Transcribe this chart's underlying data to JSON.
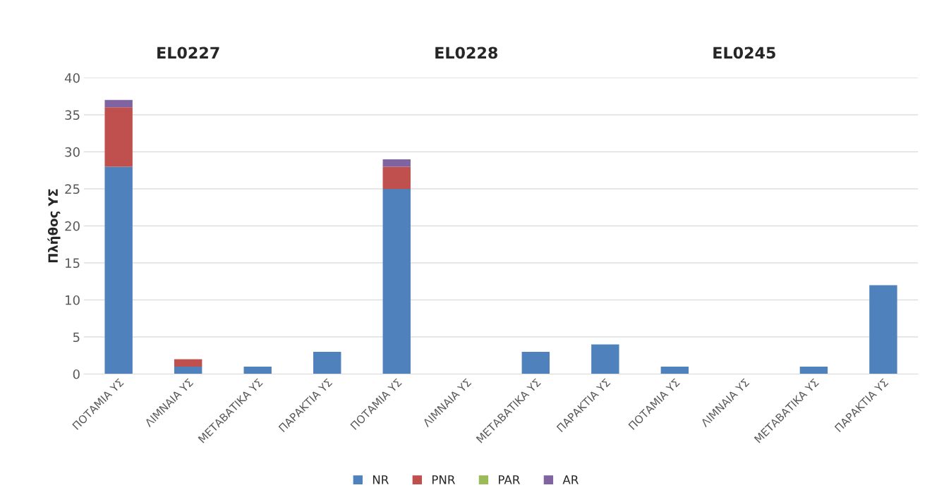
{
  "chart_data": {
    "type": "bar",
    "ylabel": "Πλήθος ΥΣ",
    "stacked": true,
    "categories": [
      "ΠΟΤΑΜΙΑ ΥΣ",
      "ΛΙΜΝΑΙΑ ΥΣ",
      "ΜΕΤΑΒΑΤΙΚΑ ΥΣ",
      "ΠΑΡΑΚΤΙΑ ΥΣ",
      "ΠΟΤΑΜΙΑ ΥΣ",
      "ΛΙΜΝΑΙΑ ΥΣ",
      "ΜΕΤΑΒΑΤΙΚΑ ΥΣ",
      "ΠΑΡΑΚΤΙΑ ΥΣ",
      "ΠΟΤΑΜΙΑ ΥΣ",
      "ΛΙΜΝΑΙΑ ΥΣ",
      "ΜΕΤΑΒΑΤΙΚΑ ΥΣ",
      "ΠΑΡΑΚΤΙΑ ΥΣ"
    ],
    "series": [
      {
        "name": "NR",
        "color": "#4f81bd",
        "values": [
          28,
          1,
          1,
          3,
          25,
          0,
          3,
          4,
          1,
          0,
          1,
          12
        ]
      },
      {
        "name": "PNR",
        "color": "#c0504d",
        "values": [
          8,
          1,
          0,
          0,
          3,
          0,
          0,
          0,
          0,
          0,
          0,
          0
        ]
      },
      {
        "name": "PAR",
        "color": "#9bbb59",
        "values": [
          0,
          0,
          0,
          0,
          0,
          0,
          0,
          0,
          0,
          0,
          0,
          0
        ]
      },
      {
        "name": "AR",
        "color": "#8064a2",
        "values": [
          1,
          0,
          0,
          0,
          1,
          0,
          0,
          0,
          0,
          0,
          0,
          0
        ]
      }
    ],
    "annotations": [
      "EL0227",
      "EL0228",
      "EL0245"
    ],
    "ylim": [
      0,
      40
    ],
    "yticks": [
      0,
      5,
      10,
      15,
      20,
      25,
      30,
      35,
      40
    ],
    "grid": "y",
    "legend": "bottom"
  }
}
